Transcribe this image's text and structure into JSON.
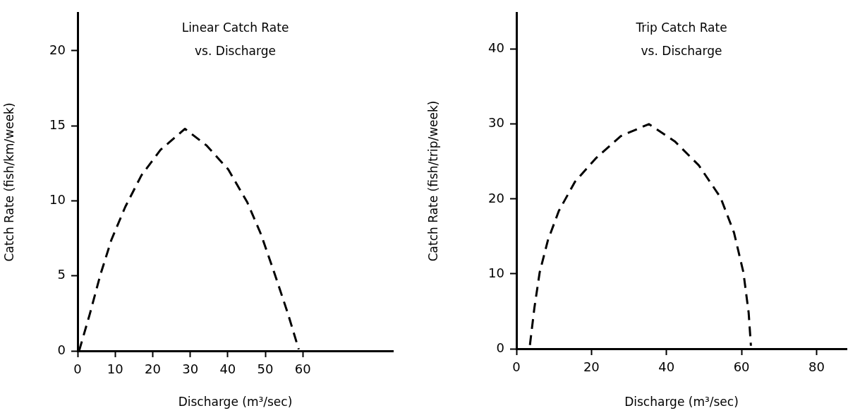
{
  "chart_data": [
    {
      "type": "line",
      "title": "Linear Catch Rate\nvs. Discharge",
      "xlabel": "Discharge (m³/sec)",
      "ylabel": "Catch Rate (fish/km/week)",
      "color": "#000000",
      "line_style": "dashed",
      "x": [
        0.4,
        3.3,
        6.1,
        9,
        12.7,
        17,
        22.1,
        28.6,
        34.3,
        40.1,
        45.2,
        48.8,
        52.4,
        56,
        58.9
      ],
      "values": [
        0,
        2.5,
        5.1,
        7.4,
        9.6,
        11.7,
        13.4,
        14.8,
        13.7,
        12.1,
        9.9,
        7.8,
        5.2,
        2.5,
        0.1
      ],
      "xlim": [
        0,
        84
      ],
      "ylim": [
        0,
        22.5
      ],
      "xticks": [
        0,
        10,
        20,
        30,
        40,
        50,
        60
      ],
      "yticks": [
        0,
        5,
        10,
        15,
        20
      ],
      "grid": false,
      "legend": false
    },
    {
      "type": "line",
      "title": "Trip Catch Rate\nvs. Discharge",
      "xlabel": "Discharge (m³/sec)",
      "ylabel": "Catch Rate (fish/trip/week)",
      "color": "#000000",
      "line_style": "dashed",
      "x": [
        3.6,
        4.8,
        6.2,
        8.4,
        11.3,
        15.6,
        21.3,
        27.8,
        35.3,
        42.2,
        48.6,
        54.4,
        58,
        60.5,
        61.9,
        62.5
      ],
      "values": [
        0.5,
        5.5,
        10.2,
        14.5,
        18.4,
        22.3,
        25.5,
        28.4,
        30,
        27.7,
        24.5,
        20.2,
        15.5,
        10.2,
        4.8,
        0.4
      ],
      "xlim": [
        0,
        88
      ],
      "ylim": [
        0,
        44.8
      ],
      "xticks": [
        0,
        20,
        40,
        60,
        80
      ],
      "yticks": [
        0,
        10,
        20,
        30,
        40
      ],
      "grid": false,
      "legend": false
    }
  ]
}
